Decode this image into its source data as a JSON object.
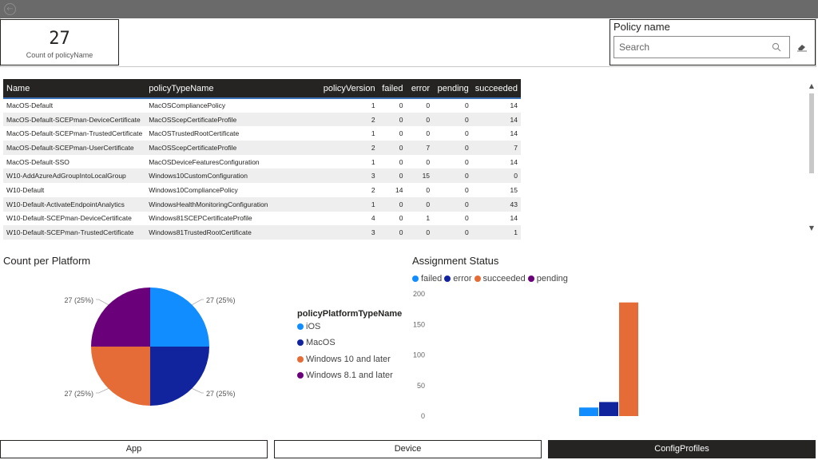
{
  "card": {
    "value": "27",
    "label": "Count of policyName"
  },
  "slicer": {
    "title": "Policy name",
    "placeholder": "Search"
  },
  "table": {
    "columns": [
      "Name",
      "policyTypeName",
      "policyVersion",
      "failed",
      "error",
      "pending",
      "succeeded"
    ],
    "rows": [
      [
        "MacOS-Default",
        "MacOSCompliancePolicy",
        "1",
        "0",
        "0",
        "0",
        "14"
      ],
      [
        "MacOS-Default-SCEPman-DeviceCertificate",
        "MacOSScepCertificateProfile",
        "2",
        "0",
        "0",
        "0",
        "14"
      ],
      [
        "MacOS-Default-SCEPman-TrustedCertificate",
        "MacOSTrustedRootCertificate",
        "1",
        "0",
        "0",
        "0",
        "14"
      ],
      [
        "MacOS-Default-SCEPman-UserCertificate",
        "MacOSScepCertificateProfile",
        "2",
        "0",
        "7",
        "0",
        "7"
      ],
      [
        "MacOS-Default-SSO",
        "MacOSDeviceFeaturesConfiguration",
        "1",
        "0",
        "0",
        "0",
        "14"
      ],
      [
        "W10-AddAzureAdGroupIntoLocalGroup",
        "Windows10CustomConfiguration",
        "3",
        "0",
        "15",
        "0",
        "0"
      ],
      [
        "W10-Default",
        "Windows10CompliancePolicy",
        "2",
        "14",
        "0",
        "0",
        "15"
      ],
      [
        "W10-Default-ActivateEndpointAnalytics",
        "WindowsHealthMonitoringConfiguration",
        "1",
        "0",
        "0",
        "0",
        "43"
      ],
      [
        "W10-Default-SCEPman-DeviceCertificate",
        "Windows81SCEPCertificateProfile",
        "4",
        "0",
        "1",
        "0",
        "14"
      ],
      [
        "W10-Default-SCEPman-TrustedCertificate",
        "Windows81TrustedRootCertificate",
        "3",
        "0",
        "0",
        "0",
        "1"
      ]
    ]
  },
  "pie": {
    "title": "Count per Platform",
    "legend_title": "policyPlatformTypeName",
    "labels": [
      "27 (25%)",
      "27 (25%)",
      "27 (25%)",
      "27 (25%)"
    ]
  },
  "bar": {
    "title": "Assignment Status",
    "legend": [
      "failed",
      "error",
      "succeeded",
      "pending"
    ],
    "ticks": [
      "200",
      "150",
      "100",
      "50",
      "0"
    ]
  },
  "chart_data": [
    {
      "type": "pie",
      "title": "Count per Platform",
      "legend_title": "policyPlatformTypeName",
      "categories": [
        "iOS",
        "MacOS",
        "Windows 10 and later",
        "Windows 8.1 and later"
      ],
      "values": [
        27,
        27,
        27,
        27
      ],
      "colors": [
        "#118dff",
        "#12239e",
        "#e66c37",
        "#6b007b"
      ],
      "data_labels": [
        "27 (25%)",
        "27 (25%)",
        "27 (25%)",
        "27 (25%)"
      ]
    },
    {
      "type": "bar",
      "title": "Assignment Status",
      "categories": [
        ""
      ],
      "series": [
        {
          "name": "failed",
          "values": [
            14
          ],
          "color": "#118dff"
        },
        {
          "name": "error",
          "values": [
            23
          ],
          "color": "#12239e"
        },
        {
          "name": "succeeded",
          "values": [
            186
          ],
          "color": "#e66c37"
        },
        {
          "name": "pending",
          "values": [
            0
          ],
          "color": "#6b007b"
        }
      ],
      "ylim": [
        0,
        200
      ],
      "yticks": [
        0,
        50,
        100,
        150,
        200
      ],
      "legend": "top-left",
      "grid": false
    }
  ],
  "nav": {
    "buttons": [
      "App",
      "Device",
      "ConfigProfiles"
    ],
    "active": "ConfigProfiles"
  }
}
